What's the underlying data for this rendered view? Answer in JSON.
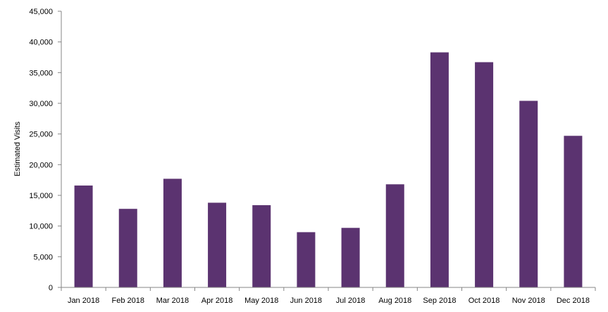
{
  "chart_data": {
    "type": "bar",
    "categories": [
      "Jan 2018",
      "Feb 2018",
      "Mar 2018",
      "Apr 2018",
      "May 2018",
      "Jun 2018",
      "Jul 2018",
      "Aug 2018",
      "Sep 2018",
      "Oct 2018",
      "Nov 2018",
      "Dec 2018"
    ],
    "values": [
      16600,
      12800,
      17700,
      13800,
      13400,
      9000,
      9700,
      16800,
      38300,
      36700,
      30400,
      24700
    ],
    "title": "",
    "xlabel": "",
    "ylabel": "Estimated Visits",
    "ylim": [
      0,
      45000
    ],
    "yticks": [
      0,
      5000,
      10000,
      15000,
      20000,
      25000,
      30000,
      35000,
      40000,
      45000
    ],
    "ytick_labels": [
      "0",
      "5,000",
      "10,000",
      "15,000",
      "20,000",
      "25,000",
      "30,000",
      "35,000",
      "40,000",
      "45,000"
    ],
    "grid": false,
    "legend": "none",
    "bar_color": "#5b3370"
  }
}
